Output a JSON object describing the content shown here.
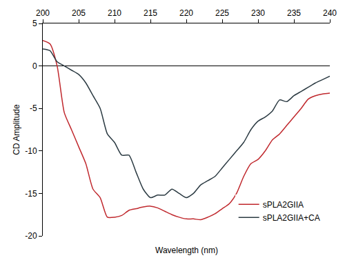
{
  "chart_data": {
    "type": "line",
    "x_label": "Wavelength (nm)",
    "y_label": "CD Amplitude",
    "x": [
      200,
      201,
      202,
      203,
      204,
      205,
      206,
      207,
      208,
      209,
      210,
      211,
      212,
      213,
      214,
      215,
      216,
      217,
      218,
      219,
      220,
      221,
      222,
      223,
      224,
      225,
      226,
      227,
      228,
      229,
      230,
      231,
      232,
      233,
      234,
      235,
      236,
      237,
      238,
      239,
      240
    ],
    "series": [
      {
        "name": "sPLA2GIIA",
        "color": "#c0282d",
        "values": [
          3.0,
          2.6,
          0.0,
          -5.5,
          -7.5,
          -9.5,
          -11.5,
          -14.5,
          -15.5,
          -17.8,
          -17.8,
          -17.6,
          -17.0,
          -16.8,
          -16.6,
          -16.5,
          -16.7,
          -17.1,
          -17.5,
          -17.8,
          -18.0,
          -18.0,
          -18.1,
          -17.8,
          -17.4,
          -16.8,
          -16.2,
          -15.0,
          -13.0,
          -11.5,
          -11.0,
          -10.0,
          -8.7,
          -8.0,
          -7.0,
          -6.0,
          -5.0,
          -3.9,
          -3.5,
          -3.3,
          -3.2
        ]
      },
      {
        "name": "sPLA2GIIA+CA",
        "color": "#2b3a42",
        "values": [
          2.0,
          1.8,
          0.5,
          0.0,
          -0.5,
          -1.0,
          -2.0,
          -3.5,
          -5.0,
          -8.0,
          -9.0,
          -10.5,
          -10.5,
          -12.5,
          -14.5,
          -15.5,
          -15.2,
          -15.2,
          -14.5,
          -15.0,
          -15.5,
          -15.0,
          -14.0,
          -13.5,
          -13.0,
          -12.0,
          -11.0,
          -10.0,
          -9.0,
          -7.5,
          -6.5,
          -6.0,
          -5.3,
          -4.0,
          -4.2,
          -3.5,
          -3.0,
          -2.5,
          -2.0,
          -1.6,
          -1.2
        ]
      }
    ],
    "xlim": [
      200,
      240
    ],
    "xticks": [
      200,
      205,
      210,
      215,
      220,
      225,
      230,
      235,
      240
    ],
    "ylim": [
      -20,
      5
    ],
    "yticks": [
      5,
      0,
      -5,
      -10,
      -15,
      -20
    ],
    "grid": false,
    "legend": "bottom right"
  }
}
